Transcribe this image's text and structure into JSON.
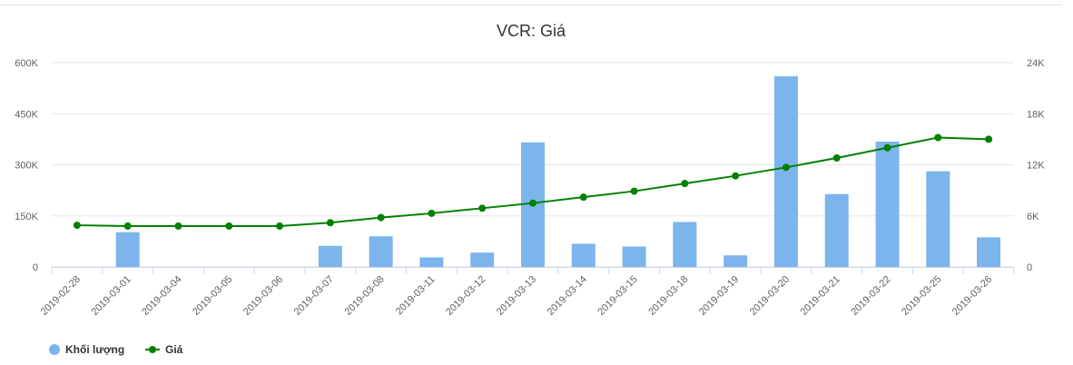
{
  "chart_data": {
    "type": "bar+line",
    "title": "VCR: Giá",
    "categories": [
      "2019-02-28",
      "2019-03-01",
      "2019-03-04",
      "2019-03-05",
      "2019-03-06",
      "2019-03-07",
      "2019-03-08",
      "2019-03-11",
      "2019-03-12",
      "2019-03-13",
      "2019-03-14",
      "2019-03-15",
      "2019-03-18",
      "2019-03-19",
      "2019-03-20",
      "2019-03-21",
      "2019-03-22",
      "2019-03-25",
      "2019-03-26"
    ],
    "series": [
      {
        "name": "Khối lượng",
        "type": "bar",
        "axis": "left",
        "color": "#7cb5ec",
        "values": [
          0,
          102000,
          0,
          0,
          0,
          62000,
          90000,
          28000,
          42000,
          366000,
          68000,
          60000,
          132000,
          34000,
          560000,
          214000,
          368000,
          281000,
          87000
        ]
      },
      {
        "name": "Giá",
        "type": "line",
        "axis": "right",
        "color": "#008000",
        "values": [
          4900,
          4800,
          4800,
          4800,
          4800,
          5200,
          5800,
          6300,
          6900,
          7500,
          8200,
          8900,
          9800,
          10700,
          11700,
          12800,
          14000,
          15200,
          15000
        ]
      }
    ],
    "y_left": {
      "min": 0,
      "max": 600000,
      "ticks": [
        0,
        150000,
        300000,
        450000,
        600000
      ],
      "tick_labels": [
        "0",
        "150K",
        "300K",
        "450K",
        "600K"
      ]
    },
    "y_right": {
      "min": 0,
      "max": 24000,
      "ticks": [
        0,
        6000,
        12000,
        18000,
        24000
      ],
      "tick_labels": [
        "0",
        "6K",
        "12K",
        "18K",
        "24K"
      ]
    },
    "grid": true,
    "legend_position": "bottom-left"
  }
}
